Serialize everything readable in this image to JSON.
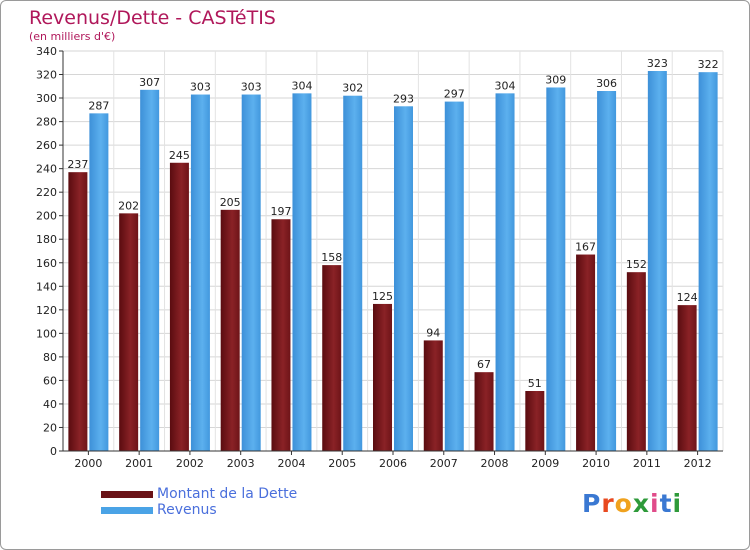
{
  "header": {
    "title": "Revenus/Dette - CASTéTIS",
    "subtitle": "(en milliers d'€)"
  },
  "brand": {
    "letters": [
      "P",
      "r",
      "o",
      "x",
      "i",
      "t",
      "i"
    ],
    "colors": [
      "#3a78d2",
      "#e8491f",
      "#f0a21e",
      "#2e9a3a",
      "#e04c8a",
      "#3a78d2",
      "#2e9a3a"
    ]
  },
  "chart_data": {
    "type": "bar",
    "categories": [
      "2000",
      "2001",
      "2002",
      "2003",
      "2004",
      "2005",
      "2006",
      "2007",
      "2008",
      "2009",
      "2010",
      "2011",
      "2012"
    ],
    "series": [
      {
        "name": "Montant de la Dette",
        "color": "#7a1a1e",
        "values": [
          237,
          202,
          245,
          205,
          197,
          158,
          125,
          94,
          67,
          51,
          167,
          152,
          124
        ]
      },
      {
        "name": "Revenus",
        "color": "#4aa3e6",
        "values": [
          287,
          307,
          303,
          303,
          304,
          302,
          293,
          297,
          304,
          309,
          306,
          323,
          322
        ]
      }
    ],
    "ylim": [
      0,
      340
    ],
    "yticks": [
      0,
      20,
      40,
      60,
      80,
      100,
      120,
      140,
      160,
      180,
      200,
      220,
      240,
      260,
      280,
      300,
      320,
      340
    ],
    "grid": true,
    "legend": "bottom-left"
  }
}
